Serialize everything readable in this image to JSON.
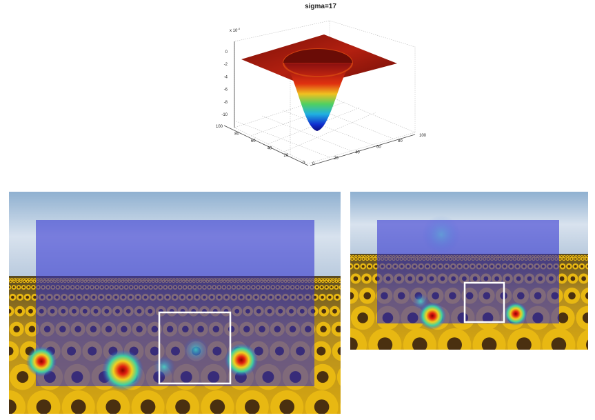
{
  "plot": {
    "title": "sigma=17",
    "z_exponent": {
      "base": "x 10",
      "power": "-4"
    },
    "z_ticks": [
      0,
      -2,
      -4,
      -6,
      -8,
      -10
    ],
    "y_ticks": [
      100,
      80,
      60,
      40,
      20,
      0
    ],
    "x_ticks": [
      0,
      20,
      40,
      60,
      80,
      100
    ]
  }
}
